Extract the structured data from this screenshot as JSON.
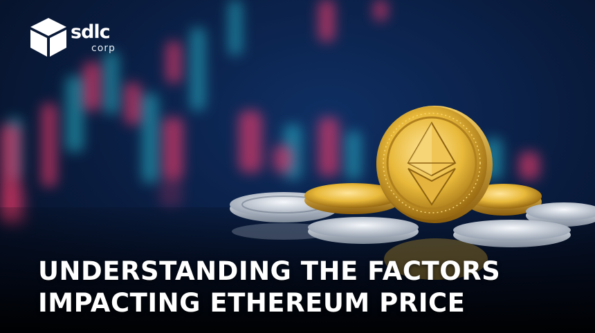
{
  "logo": {
    "brand_name": "sdlc",
    "brand_sub": "corp"
  },
  "headline": {
    "line1": "UNDERSTANDING THE FACTORS",
    "line2": "IMPACTING ETHEREUM PRICE"
  },
  "colors": {
    "background": "#0a1f45",
    "candle_red": "#ff3d6e",
    "candle_cyan": "#2fd6e6",
    "gold": "#e8b93a",
    "silver": "#c9d3e0",
    "text": "#ffffff"
  },
  "icons": [
    "sdlc-cube-logo",
    "ethereum-coin-icon"
  ]
}
